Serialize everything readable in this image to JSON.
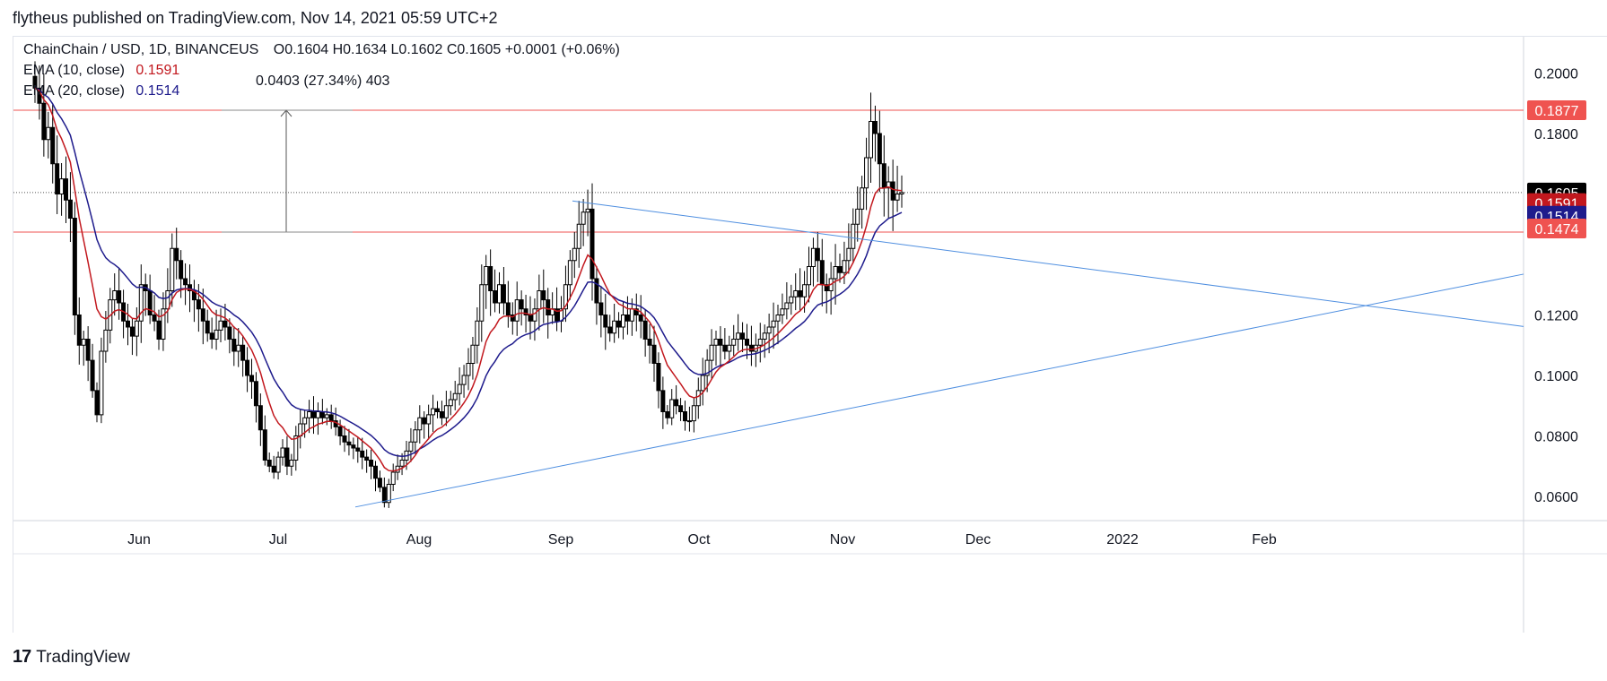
{
  "header": {
    "published_line": "flytheus published on TradingView.com, Nov 14, 2021 05:59 UTC+2"
  },
  "legend": {
    "symbol_line": "⁠ChainChain / USD, 1D, BINANCEUS",
    "symbol": "ChainChain / USD, 1D, BINANCEUS",
    "ohlc": "O0.1604  H0.1634  L0.1602  C0.1605  +0.0001 (+0.06%)",
    "ema10_label": "EMA (10, close)",
    "ema10_value": "0.1591",
    "ema20_label": "EMA (20, close)",
    "ema20_value": "0.1514"
  },
  "measure_label": "0.0403 (27.34%) 403",
  "footer": {
    "brand": "TradingView",
    "logo": "17"
  },
  "colors": {
    "ema10": "#c2181e",
    "ema20": "#1e1b8c",
    "trendline": "#4f8fe0",
    "level": "#ef5350",
    "last_price": "#000000",
    "grid": "#e0e3eb"
  },
  "chart_data": {
    "type": "candlestick",
    "y_axis": {
      "range": [
        0.052,
        0.212
      ],
      "ticks": [
        "0.2000",
        "0.1800",
        "0.1200",
        "0.1000",
        "0.0800",
        "0.0600"
      ]
    },
    "x_axis": {
      "labels": [
        "Jun",
        "Jul",
        "Aug",
        "Sep",
        "Oct",
        "Nov",
        "Dec",
        "2022",
        "Feb"
      ]
    },
    "price_labels": [
      {
        "value": "0.1877",
        "kind": "level"
      },
      {
        "value": "0.1605",
        "kind": "last"
      },
      {
        "value": "0.1591",
        "kind": "ema10"
      },
      {
        "value": "0.1514",
        "kind": "ema20"
      },
      {
        "value": "0.1474",
        "kind": "level"
      }
    ],
    "horizontal_levels": [
      0.1877,
      0.1474
    ],
    "last_price": 0.1605,
    "series_close": [
      0.195,
      0.19,
      0.178,
      0.182,
      0.17,
      0.16,
      0.165,
      0.158,
      0.152,
      0.12,
      0.11,
      0.112,
      0.105,
      0.095,
      0.087,
      0.108,
      0.115,
      0.125,
      0.128,
      0.124,
      0.118,
      0.116,
      0.113,
      0.118,
      0.13,
      0.128,
      0.12,
      0.118,
      0.112,
      0.122,
      0.128,
      0.142,
      0.138,
      0.132,
      0.13,
      0.128,
      0.125,
      0.122,
      0.118,
      0.114,
      0.112,
      0.115,
      0.118,
      0.116,
      0.112,
      0.108,
      0.11,
      0.105,
      0.1,
      0.098,
      0.09,
      0.082,
      0.072,
      0.07,
      0.068,
      0.073,
      0.076,
      0.07,
      0.072,
      0.08,
      0.084,
      0.086,
      0.088,
      0.086,
      0.088,
      0.086,
      0.087,
      0.085,
      0.083,
      0.08,
      0.078,
      0.077,
      0.076,
      0.075,
      0.073,
      0.072,
      0.07,
      0.066,
      0.063,
      0.058,
      0.064,
      0.068,
      0.07,
      0.072,
      0.075,
      0.078,
      0.082,
      0.086,
      0.084,
      0.087,
      0.089,
      0.088,
      0.086,
      0.09,
      0.092,
      0.094,
      0.097,
      0.1,
      0.104,
      0.11,
      0.118,
      0.13,
      0.136,
      0.128,
      0.124,
      0.13,
      0.124,
      0.12,
      0.118,
      0.125,
      0.122,
      0.12,
      0.118,
      0.122,
      0.128,
      0.125,
      0.12,
      0.122,
      0.118,
      0.122,
      0.13,
      0.138,
      0.142,
      0.15,
      0.154,
      0.155,
      0.132,
      0.124,
      0.12,
      0.116,
      0.114,
      0.118,
      0.116,
      0.12,
      0.118,
      0.122,
      0.12,
      0.118,
      0.112,
      0.11,
      0.104,
      0.095,
      0.088,
      0.086,
      0.092,
      0.09,
      0.088,
      0.085,
      0.085,
      0.09,
      0.095,
      0.1,
      0.105,
      0.11,
      0.112,
      0.11,
      0.108,
      0.11,
      0.112,
      0.114,
      0.112,
      0.11,
      0.108,
      0.11,
      0.112,
      0.114,
      0.116,
      0.118,
      0.12,
      0.122,
      0.124,
      0.126,
      0.128,
      0.126,
      0.13,
      0.136,
      0.142,
      0.138,
      0.13,
      0.128,
      0.132,
      0.136,
      0.134,
      0.138,
      0.142,
      0.15,
      0.155,
      0.162,
      0.172,
      0.184,
      0.18,
      0.17,
      0.162,
      0.164,
      0.158,
      0.16,
      0.1605
    ],
    "ema10_series": "computed from close",
    "ema20_series": "computed from close",
    "trendlines": [
      {
        "from": [
          "Sep 7",
          0.1577
        ],
        "to": [
          "Feb 20",
          0.1162
        ]
      },
      {
        "from": [
          "Jul 21",
          0.0565
        ],
        "to": [
          "Feb 20",
          0.1335
        ]
      }
    ],
    "measure": {
      "from": 0.1474,
      "to": 0.1877
    }
  }
}
